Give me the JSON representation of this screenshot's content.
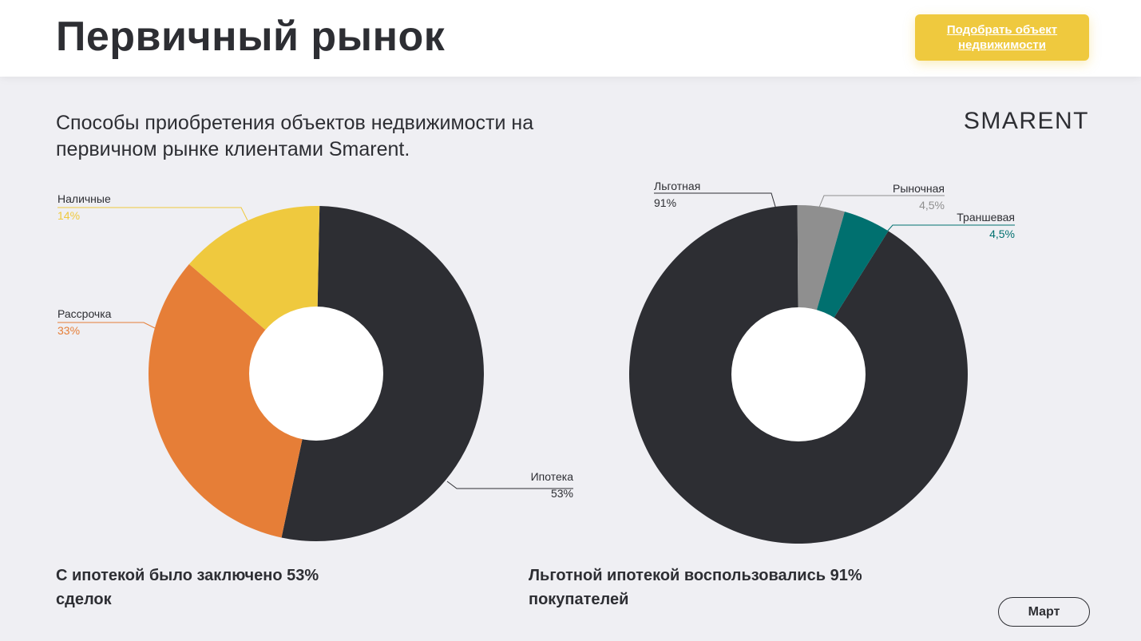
{
  "header": {
    "title": "Первичный рынок",
    "cta_label": "Подобрать объект недвижимости"
  },
  "subtitle": "Способы приобретения объектов недвижимости на первичном рынке клиентами Smarent.",
  "brand": "SMARENT",
  "summary_left": "С ипотекой было заключено 53% сделок",
  "summary_right": "Льготной ипотекой воспользовались 91% покупателей",
  "month_button": "Март",
  "colors": {
    "dark": "#2d2e33",
    "orange": "#e67e37",
    "yellow": "#efc93e",
    "gray": "#8f8f8f",
    "teal": "#00706f"
  },
  "chart_data": [
    {
      "type": "pie",
      "variant": "donut",
      "slices": [
        {
          "label": "Ипотека",
          "value": 53,
          "value_label": "53%",
          "color": "#2d2e33"
        },
        {
          "label": "Рассрочка",
          "value": 33,
          "value_label": "33%",
          "color": "#e67e37"
        },
        {
          "label": "Наличные",
          "value": 14,
          "value_label": "14%",
          "color": "#efc93e"
        }
      ]
    },
    {
      "type": "pie",
      "variant": "donut",
      "slices": [
        {
          "label": "Льготная",
          "value": 91,
          "value_label": "91%",
          "color": "#2d2e33"
        },
        {
          "label": "Рыночная",
          "value": 4.5,
          "value_label": "4,5%",
          "color": "#8f8f8f"
        },
        {
          "label": "Траншевая",
          "value": 4.5,
          "value_label": "4,5%",
          "color": "#00706f"
        }
      ]
    }
  ]
}
